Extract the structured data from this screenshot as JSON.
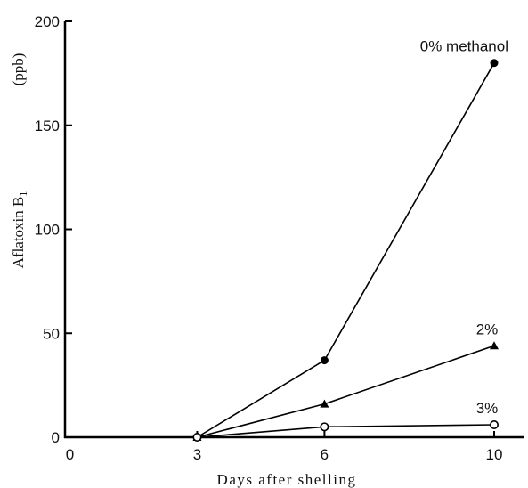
{
  "chart_data": {
    "type": "line",
    "xlabel": "Days after shelling",
    "ylabel": "Aflatoxin B",
    "ylabel_subscript": "1",
    "ylabel_unit": "(ppb)",
    "xlim": [
      0,
      11
    ],
    "ylim": [
      0,
      200
    ],
    "x_ticks": [
      0,
      3,
      6,
      10
    ],
    "y_ticks": [
      0,
      50,
      100,
      150,
      200
    ],
    "series": [
      {
        "name": "0% methanol",
        "marker": "filled-circle",
        "x": [
          3,
          6,
          10
        ],
        "values": [
          0,
          37,
          180
        ]
      },
      {
        "name": "2%",
        "marker": "filled-triangle",
        "x": [
          3,
          6,
          10
        ],
        "values": [
          0,
          16,
          44
        ]
      },
      {
        "name": "3%",
        "marker": "open-circle",
        "x": [
          3,
          6,
          10
        ],
        "values": [
          0,
          5,
          6
        ]
      }
    ],
    "grid": false,
    "legend": "inline labels at line ends"
  }
}
